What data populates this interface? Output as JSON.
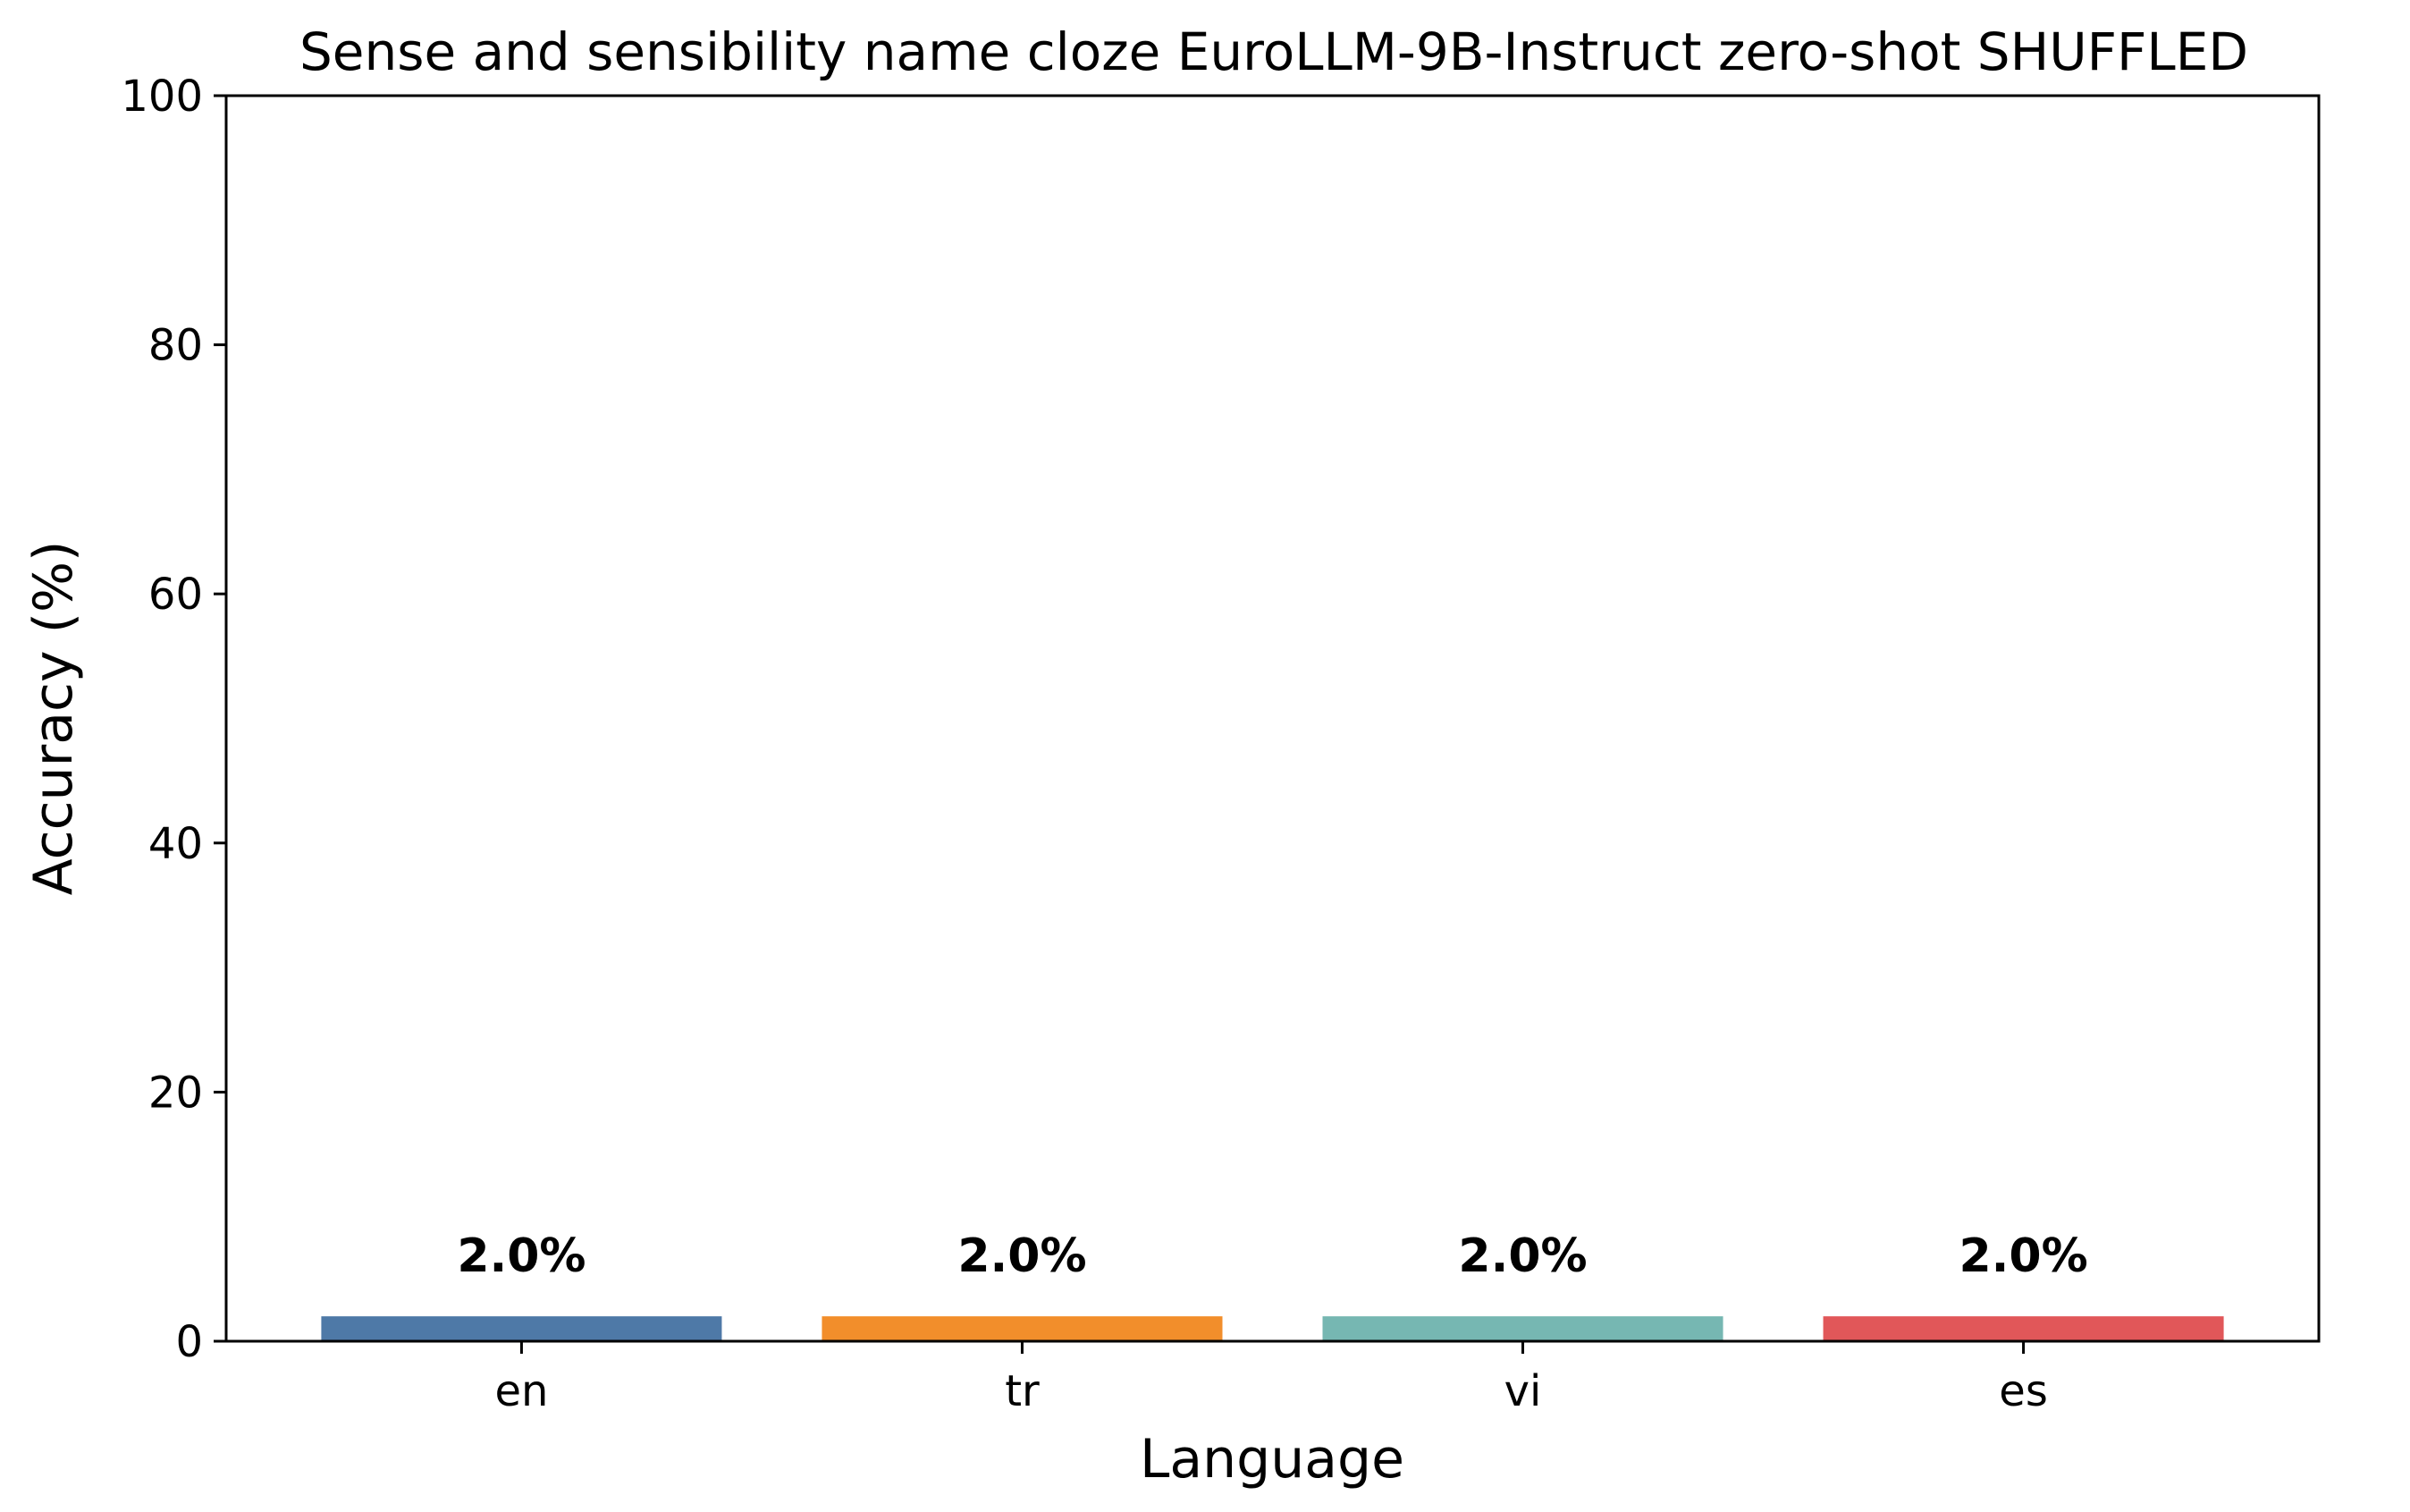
{
  "chart_data": {
    "type": "bar",
    "title": "Sense and sensibility name cloze EuroLLM-9B-Instruct zero-shot SHUFFLED",
    "xlabel": "Language",
    "ylabel": "Accuracy (%)",
    "categories": [
      "en",
      "tr",
      "vi",
      "es"
    ],
    "values": [
      2.0,
      2.0,
      2.0,
      2.0
    ],
    "data_labels": [
      "2.0%",
      "2.0%",
      "2.0%",
      "2.0%"
    ],
    "colors": [
      "#4e79a7",
      "#f28e2b",
      "#76b7b2",
      "#e15759"
    ],
    "ylim": [
      0,
      100
    ],
    "yticks": [
      0,
      20,
      40,
      60,
      80,
      100
    ],
    "grid": false,
    "legend": "none"
  }
}
